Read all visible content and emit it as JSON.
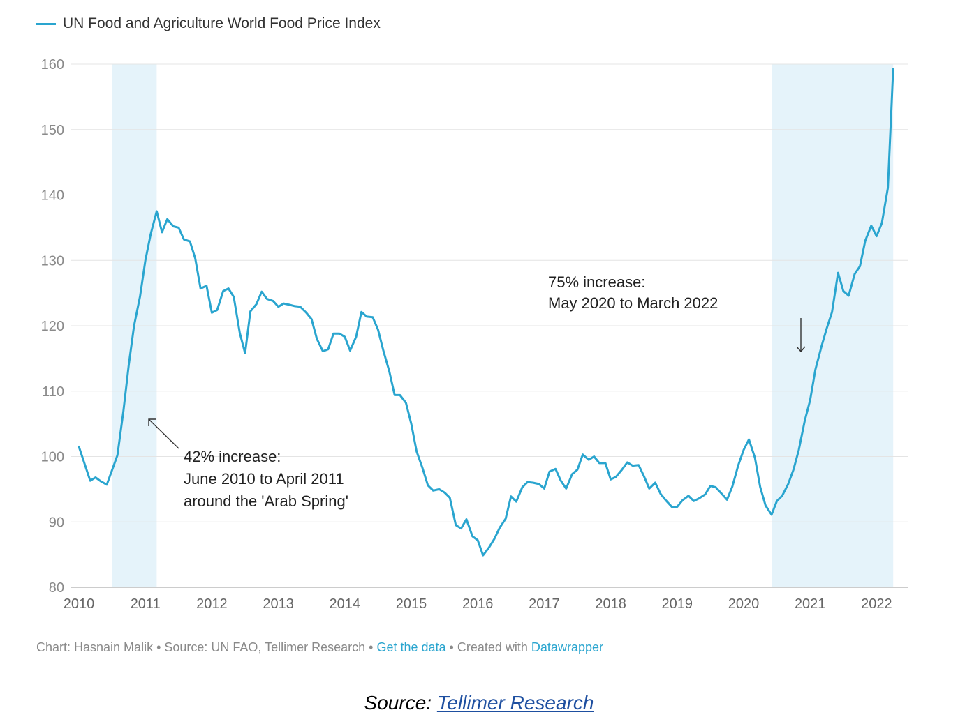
{
  "chart_data": {
    "type": "line",
    "series": [
      {
        "name": "UN Food and Agriculture World Food Price Index",
        "color": "#2aa5cf",
        "points": [
          [
            2010.0,
            101.5
          ],
          [
            2010.17,
            96.3
          ],
          [
            2010.25,
            96.8
          ],
          [
            2010.33,
            96.2
          ],
          [
            2010.42,
            95.7
          ],
          [
            2010.58,
            100.2
          ],
          [
            2010.67,
            107.0
          ],
          [
            2010.75,
            114.0
          ],
          [
            2010.83,
            120.0
          ],
          [
            2010.92,
            124.5
          ],
          [
            2011.0,
            130.0
          ],
          [
            2011.08,
            134.0
          ],
          [
            2011.17,
            137.5
          ],
          [
            2011.25,
            134.3
          ],
          [
            2011.33,
            136.3
          ],
          [
            2011.42,
            135.2
          ],
          [
            2011.5,
            135.0
          ],
          [
            2011.58,
            133.2
          ],
          [
            2011.67,
            132.9
          ],
          [
            2011.75,
            130.3
          ],
          [
            2011.83,
            125.7
          ],
          [
            2011.92,
            126.1
          ],
          [
            2012.0,
            122.0
          ],
          [
            2012.08,
            122.4
          ],
          [
            2012.17,
            125.3
          ],
          [
            2012.25,
            125.7
          ],
          [
            2012.33,
            124.4
          ],
          [
            2012.42,
            118.9
          ],
          [
            2012.5,
            115.8
          ],
          [
            2012.58,
            122.2
          ],
          [
            2012.67,
            123.3
          ],
          [
            2012.75,
            125.2
          ],
          [
            2012.83,
            124.1
          ],
          [
            2012.92,
            123.8
          ],
          [
            2013.0,
            122.9
          ],
          [
            2013.08,
            123.4
          ],
          [
            2013.17,
            123.2
          ],
          [
            2013.25,
            123.0
          ],
          [
            2013.33,
            122.9
          ],
          [
            2013.42,
            122.0
          ],
          [
            2013.5,
            121.0
          ],
          [
            2013.58,
            118.0
          ],
          [
            2013.67,
            116.1
          ],
          [
            2013.75,
            116.4
          ],
          [
            2013.83,
            118.8
          ],
          [
            2013.92,
            118.8
          ],
          [
            2014.0,
            118.3
          ],
          [
            2014.08,
            116.2
          ],
          [
            2014.17,
            118.3
          ],
          [
            2014.25,
            122.1
          ],
          [
            2014.33,
            121.4
          ],
          [
            2014.42,
            121.3
          ],
          [
            2014.5,
            119.4
          ],
          [
            2014.58,
            116.2
          ],
          [
            2014.67,
            113.0
          ],
          [
            2014.75,
            109.4
          ],
          [
            2014.83,
            109.4
          ],
          [
            2014.92,
            108.2
          ],
          [
            2015.0,
            105.0
          ],
          [
            2015.08,
            100.8
          ],
          [
            2015.17,
            98.2
          ],
          [
            2015.25,
            95.6
          ],
          [
            2015.33,
            94.8
          ],
          [
            2015.42,
            95.0
          ],
          [
            2015.5,
            94.5
          ],
          [
            2015.58,
            93.7
          ],
          [
            2015.67,
            89.5
          ],
          [
            2015.75,
            89.0
          ],
          [
            2015.83,
            90.4
          ],
          [
            2015.92,
            87.8
          ],
          [
            2016.0,
            87.2
          ],
          [
            2016.08,
            84.9
          ],
          [
            2016.17,
            86.1
          ],
          [
            2016.25,
            87.4
          ],
          [
            2016.33,
            89.1
          ],
          [
            2016.42,
            90.5
          ],
          [
            2016.5,
            93.9
          ],
          [
            2016.58,
            93.1
          ],
          [
            2016.67,
            95.3
          ],
          [
            2016.75,
            96.1
          ],
          [
            2016.83,
            96.0
          ],
          [
            2016.92,
            95.8
          ],
          [
            2017.0,
            95.1
          ],
          [
            2017.08,
            97.7
          ],
          [
            2017.17,
            98.1
          ],
          [
            2017.25,
            96.3
          ],
          [
            2017.33,
            95.1
          ],
          [
            2017.42,
            97.3
          ],
          [
            2017.5,
            98.0
          ],
          [
            2017.58,
            100.3
          ],
          [
            2017.67,
            99.5
          ],
          [
            2017.75,
            100.0
          ],
          [
            2017.83,
            99.0
          ],
          [
            2017.92,
            99.0
          ],
          [
            2018.0,
            96.5
          ],
          [
            2018.08,
            96.9
          ],
          [
            2018.17,
            98.0
          ],
          [
            2018.25,
            99.1
          ],
          [
            2018.33,
            98.6
          ],
          [
            2018.42,
            98.7
          ],
          [
            2018.5,
            97.0
          ],
          [
            2018.58,
            95.1
          ],
          [
            2018.67,
            96.0
          ],
          [
            2018.75,
            94.3
          ],
          [
            2018.83,
            93.3
          ],
          [
            2018.92,
            92.3
          ],
          [
            2019.0,
            92.3
          ],
          [
            2019.08,
            93.3
          ],
          [
            2019.17,
            94.0
          ],
          [
            2019.25,
            93.2
          ],
          [
            2019.33,
            93.6
          ],
          [
            2019.42,
            94.2
          ],
          [
            2019.5,
            95.5
          ],
          [
            2019.58,
            95.3
          ],
          [
            2019.67,
            94.3
          ],
          [
            2019.75,
            93.4
          ],
          [
            2019.83,
            95.4
          ],
          [
            2019.92,
            98.7
          ],
          [
            2020.0,
            101.0
          ],
          [
            2020.08,
            102.6
          ],
          [
            2020.17,
            99.8
          ],
          [
            2020.25,
            95.3
          ],
          [
            2020.33,
            92.5
          ],
          [
            2020.42,
            91.1
          ],
          [
            2020.5,
            93.2
          ],
          [
            2020.58,
            94.0
          ],
          [
            2020.67,
            95.8
          ],
          [
            2020.75,
            98.0
          ],
          [
            2020.83,
            101.0
          ],
          [
            2020.92,
            105.5
          ],
          [
            2021.0,
            108.6
          ],
          [
            2021.08,
            113.3
          ],
          [
            2021.17,
            116.8
          ],
          [
            2021.25,
            119.6
          ],
          [
            2021.33,
            122.1
          ],
          [
            2021.42,
            128.1
          ],
          [
            2021.5,
            125.3
          ],
          [
            2021.58,
            124.6
          ],
          [
            2021.67,
            127.9
          ],
          [
            2021.75,
            129.1
          ],
          [
            2021.83,
            133.0
          ],
          [
            2021.92,
            135.3
          ],
          [
            2022.0,
            133.7
          ],
          [
            2022.08,
            135.7
          ],
          [
            2022.17,
            141.1
          ],
          [
            2022.25,
            159.3
          ]
        ]
      }
    ],
    "xlim": [
      2010,
      2022.3
    ],
    "ylim": [
      80,
      160
    ],
    "xticks": [
      "2010",
      "2011",
      "2012",
      "2013",
      "2014",
      "2015",
      "2016",
      "2017",
      "2018",
      "2019",
      "2020",
      "2021",
      "2022"
    ],
    "yticks": [
      "80",
      "90",
      "100",
      "110",
      "120",
      "130",
      "140",
      "150",
      "160"
    ],
    "grid": true,
    "legend_position": "top-left",
    "shaded_ranges": [
      {
        "from": 2010.5,
        "to": 2011.17
      },
      {
        "from": 2020.42,
        "to": 2022.25
      }
    ],
    "shade_color": "#e5f3fa",
    "annotations": [
      {
        "lines": [
          "42% increase:",
          "June 2010 to April 2011",
          "around the 'Arab Spring'"
        ]
      },
      {
        "lines": [
          "75% increase:",
          "May 2020 to March 2022"
        ]
      }
    ]
  },
  "legend": {
    "label": "UN Food and Agriculture World Food Price Index"
  },
  "footer": {
    "credit": "Chart: Hasnain Malik",
    "source": "Source: UN FAO, Tellimer Research",
    "get_data": "Get the data",
    "created_with": "Created with",
    "datawrapper": "Datawrapper",
    "sep": " • "
  },
  "source_line": {
    "prefix": "Source:",
    "link": "Tellimer Research"
  }
}
